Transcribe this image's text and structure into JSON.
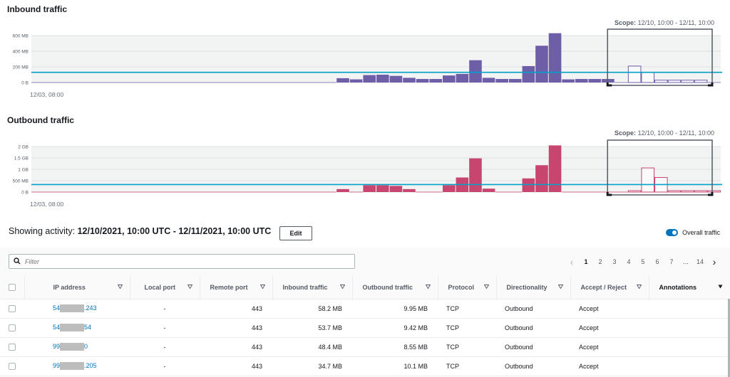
{
  "inbound": {
    "title": "Inbound traffic",
    "scope_label": "Scope:",
    "scope_value": "12/10, 10:00 - 12/11, 10:00",
    "start_label": "12/03, 08:00",
    "y_ticks": [
      "600 MB",
      "400 MB",
      "200 MB",
      "0 B"
    ],
    "y_tick_values": [
      600,
      400,
      200,
      0
    ],
    "baseline_value": 130,
    "color": "#6e5ea8",
    "bars": [
      0,
      0,
      0,
      0,
      0,
      0,
      0,
      0,
      0,
      0,
      0,
      0,
      0,
      0,
      0,
      0,
      0,
      0,
      0,
      0,
      0,
      0,
      0,
      55,
      40,
      95,
      100,
      85,
      60,
      45,
      45,
      90,
      110,
      285,
      60,
      45,
      45,
      210,
      470,
      630,
      40,
      45,
      45,
      45,
      0,
      210,
      130,
      30,
      30,
      30,
      30,
      0
    ],
    "scope_start_index": 44
  },
  "outbound": {
    "title": "Outbound traffic",
    "scope_label": "Scope:",
    "scope_value": "12/10, 10:00 - 12/11, 10:00",
    "start_label": "12/03, 08:00",
    "y_ticks": [
      "2 GB",
      "1.5 GB",
      "1 GB",
      "500 MB",
      "0 B"
    ],
    "y_tick_values": [
      2000,
      1500,
      1000,
      500,
      0
    ],
    "baseline_value": 330,
    "color": "#c7456f",
    "bars": [
      0,
      0,
      0,
      0,
      0,
      0,
      0,
      0,
      0,
      0,
      0,
      0,
      0,
      0,
      0,
      0,
      0,
      0,
      0,
      0,
      0,
      0,
      0,
      130,
      0,
      300,
      300,
      270,
      130,
      0,
      0,
      300,
      640,
      1480,
      150,
      0,
      0,
      600,
      1180,
      2050,
      0,
      0,
      0,
      0,
      0,
      60,
      1060,
      640,
      60,
      60,
      60,
      60
    ],
    "scope_start_index": 44
  },
  "activity": {
    "prefix": "Showing activity: ",
    "range": "12/10/2021, 10:00 UTC - 12/11/2021, 10:00 UTC",
    "edit_label": "Edit",
    "toggle_label": "Overall traffic"
  },
  "filter": {
    "placeholder": "Filter"
  },
  "pagination": {
    "prev": "‹",
    "pages": [
      "1",
      "2",
      "3",
      "4",
      "5",
      "6",
      "7"
    ],
    "ellipsis": "...",
    "last": "14",
    "next": "›"
  },
  "table": {
    "columns": [
      "IP address",
      "Local port",
      "Remote port",
      "Inbound traffic",
      "Outbound traffic",
      "Protocol",
      "Directionality",
      "Accept / Reject",
      "Annotations"
    ],
    "rows": [
      {
        "ip_prefix": "54",
        "ip_suffix": ".243",
        "local_port": "-",
        "remote_port": "443",
        "inbound": "58.2 MB",
        "outbound": "9.95 MB",
        "protocol": "TCP",
        "direction": "Outbound",
        "accept": "Accept"
      },
      {
        "ip_prefix": "54",
        "ip_suffix": "54",
        "local_port": "-",
        "remote_port": "443",
        "inbound": "53.7 MB",
        "outbound": "9.42 MB",
        "protocol": "TCP",
        "direction": "Outbound",
        "accept": "Accept"
      },
      {
        "ip_prefix": "99",
        "ip_suffix": "0",
        "local_port": "-",
        "remote_port": "443",
        "inbound": "48.4 MB",
        "outbound": "8.55 MB",
        "protocol": "TCP",
        "direction": "Outbound",
        "accept": "Accept"
      },
      {
        "ip_prefix": "99",
        "ip_suffix": ".205",
        "local_port": "-",
        "remote_port": "443",
        "inbound": "34.7 MB",
        "outbound": "10.1 MB",
        "protocol": "TCP",
        "direction": "Outbound",
        "accept": "Accept"
      }
    ]
  },
  "colors": {
    "accent": "#0073bb",
    "baseline": "#00a1c9"
  }
}
